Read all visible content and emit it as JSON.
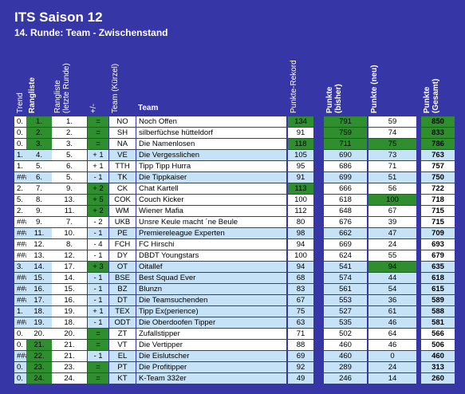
{
  "header": {
    "title": "ITS Saison 12",
    "subtitle": "14. Runde: Team - Zwischenstand"
  },
  "table": {
    "columns": [
      "Trend",
      "Rangliste",
      "Rangliste (letzte Runde)",
      "+/-",
      "Team (Kürzel)",
      "Team",
      "Punkte-Rekord",
      "Punkte (bisher)",
      "Punkte (neu)",
      "Punkte (Gesamt)"
    ],
    "rows": [
      [
        "0.",
        "1.",
        "1.",
        "=",
        "NO",
        "Noch Offen",
        134,
        791,
        59,
        850
      ],
      [
        "0.",
        "2.",
        "2.",
        "=",
        "SH",
        "silberfüchse hütteldorf",
        91,
        759,
        74,
        833
      ],
      [
        "0.",
        "3.",
        "3.",
        "=",
        "NA",
        "Die Namenlosen",
        118,
        711,
        75,
        786
      ],
      [
        "1.",
        "4.",
        "5.",
        "+ 1",
        "VE",
        "Die Vergesslichen",
        105,
        690,
        73,
        763
      ],
      [
        "1.",
        "5.",
        "6.",
        "+ 1",
        "TTH",
        "Tipp Tipp Hurra",
        95,
        686,
        71,
        757
      ],
      [
        "###",
        "6.",
        "5.",
        "- 1",
        "TK",
        "Die Tippkaiser",
        91,
        699,
        51,
        750
      ],
      [
        "2.",
        "7.",
        "9.",
        "+ 2",
        "CK",
        "Chat Kartell",
        113,
        666,
        56,
        722
      ],
      [
        "5.",
        "8.",
        "13.",
        "+ 5",
        "COK",
        "Couch Kicker",
        100,
        618,
        100,
        718
      ],
      [
        "2.",
        "9.",
        "11.",
        "+ 2",
        "WM",
        "Wiener Mafia",
        112,
        648,
        67,
        715
      ],
      [
        "###",
        "9.",
        "7.",
        "- 2",
        "UKB",
        "Unsre Keule macht ´ne Beule",
        80,
        676,
        39,
        715
      ],
      [
        "###",
        "11.",
        "10.",
        "- 1",
        "PE",
        "Premiereleague Experten",
        98,
        662,
        47,
        709
      ],
      [
        "###",
        "12.",
        "8.",
        "- 4",
        "FCH",
        "FC Hirschi",
        94,
        669,
        24,
        693
      ],
      [
        "###",
        "13.",
        "12.",
        "- 1",
        "DY",
        "DBDT Youngstars",
        100,
        624,
        55,
        679
      ],
      [
        "3.",
        "14.",
        "17.",
        "+ 3",
        "OT",
        "Oitallef",
        94,
        541,
        94,
        635
      ],
      [
        "###",
        "15.",
        "14.",
        "- 1",
        "BSE",
        "Best Squad Ever",
        68,
        574,
        44,
        618
      ],
      [
        "###",
        "16.",
        "15.",
        "- 1",
        "BZ",
        "Blunzn",
        83,
        561,
        54,
        615
      ],
      [
        "###",
        "17.",
        "16.",
        "- 1",
        "DT",
        "Die Teamsuchenden",
        67,
        553,
        36,
        589
      ],
      [
        "1.",
        "18.",
        "19.",
        "+ 1",
        "TEX",
        "Tipp Ex(perience)",
        75,
        527,
        61,
        588
      ],
      [
        "###",
        "19.",
        "18.",
        "- 1",
        "ODT",
        "Die Oberdoofen Tipper",
        63,
        535,
        46,
        581
      ],
      [
        "0.",
        "20.",
        "20.",
        "=",
        "ZT",
        "Zufallstipper",
        71,
        502,
        64,
        566
      ],
      [
        "0.",
        "21.",
        "21.",
        "=",
        "VT",
        "Die Vertipper",
        88,
        460,
        46,
        506
      ],
      [
        "###",
        "22.",
        "21.",
        "- 1",
        "EL",
        "Die Eislutscher",
        69,
        460,
        0,
        460
      ],
      [
        "0.",
        "23.",
        "23.",
        "=",
        "PT",
        "Die Profitipper",
        92,
        289,
        24,
        313
      ],
      [
        "0.",
        "24.",
        "24.",
        "=",
        "KT",
        "K-Team 332er",
        49,
        246,
        14,
        260
      ]
    ]
  }
}
